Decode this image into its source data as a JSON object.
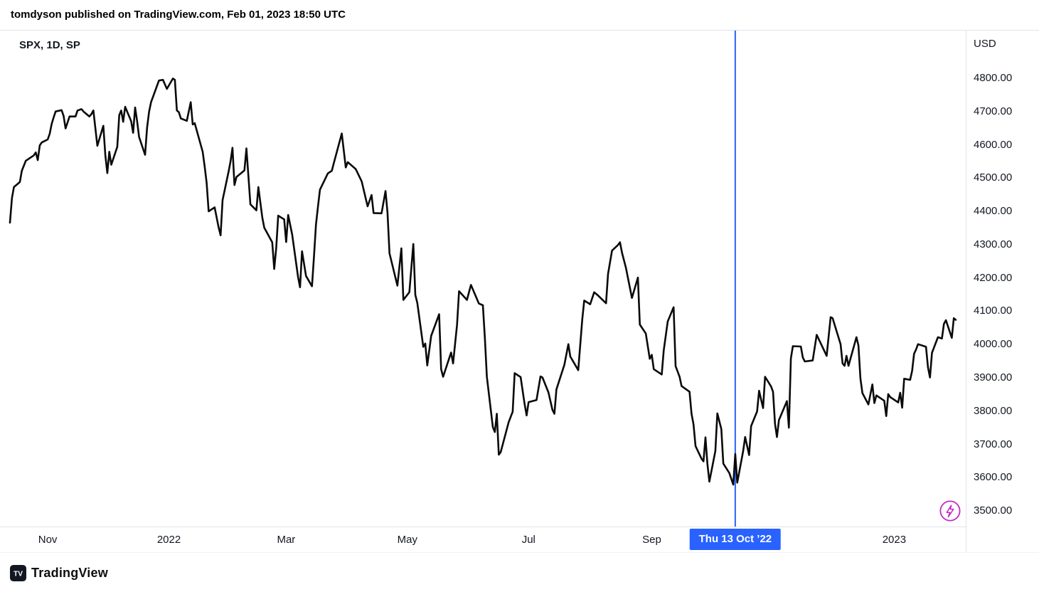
{
  "header": {
    "attribution": "tomdyson published on TradingView.com, Feb 01, 2023 18:50 UTC"
  },
  "chart": {
    "legend": "SPX, 1D, SP",
    "currency_label": "USD"
  },
  "footer": {
    "brand": "TradingView"
  },
  "colors": {
    "line": "#0a0a0a",
    "crosshair": "#2962ff",
    "text": "#131722",
    "axis_border": "#e0e3eb",
    "flash_icon": "#c22ac5"
  },
  "chart_data": {
    "type": "line",
    "title": "SPX, 1D, SP",
    "symbol": "SPX",
    "interval": "1D",
    "exchange": "SP",
    "currency": "USD",
    "xlabel": "",
    "ylabel": "",
    "grid": false,
    "ylim": [
      3449,
      4941
    ],
    "time_range": [
      "2021-10-08",
      "2023-02-06"
    ],
    "y_ticks": [
      4800,
      4700,
      4600,
      4500,
      4400,
      4300,
      4200,
      4100,
      4000,
      3900,
      3800,
      3700,
      3600,
      3500
    ],
    "x_ticks": [
      {
        "label": "Nov",
        "date": "2021-11-01"
      },
      {
        "label": "2022",
        "date": "2022-01-01"
      },
      {
        "label": "Mar",
        "date": "2022-03-01"
      },
      {
        "label": "May",
        "date": "2022-05-01"
      },
      {
        "label": "Jul",
        "date": "2022-07-01"
      },
      {
        "label": "Sep",
        "date": "2022-09-01"
      },
      {
        "label": "2023",
        "date": "2023-01-01"
      }
    ],
    "crosshair": {
      "date": "2022-10-13",
      "label": "Thu 13 Oct ’22"
    },
    "dates": [
      "2021-10-13",
      "2021-10-14",
      "2021-10-15",
      "2021-10-18",
      "2021-10-19",
      "2021-10-21",
      "2021-10-25",
      "2021-10-26",
      "2021-10-27",
      "2021-10-28",
      "2021-10-29",
      "2021-11-01",
      "2021-11-02",
      "2021-11-03",
      "2021-11-04",
      "2021-11-05",
      "2021-11-08",
      "2021-11-09",
      "2021-11-10",
      "2021-11-12",
      "2021-11-15",
      "2021-11-16",
      "2021-11-18",
      "2021-11-19",
      "2021-11-22",
      "2021-11-23",
      "2021-11-24",
      "2021-11-26",
      "2021-11-29",
      "2021-11-30",
      "2021-12-01",
      "2021-12-02",
      "2021-12-03",
      "2021-12-06",
      "2021-12-07",
      "2021-12-08",
      "2021-12-09",
      "2021-12-10",
      "2021-12-13",
      "2021-12-14",
      "2021-12-15",
      "2021-12-16",
      "2021-12-17",
      "2021-12-20",
      "2021-12-21",
      "2021-12-22",
      "2021-12-23",
      "2021-12-27",
      "2021-12-29",
      "2021-12-31",
      "2022-01-03",
      "2022-01-04",
      "2022-01-05",
      "2022-01-06",
      "2022-01-07",
      "2022-01-10",
      "2022-01-12",
      "2022-01-13",
      "2022-01-14",
      "2022-01-18",
      "2022-01-19",
      "2022-01-20",
      "2022-01-21",
      "2022-01-24",
      "2022-01-26",
      "2022-01-27",
      "2022-01-28",
      "2022-01-31",
      "2022-02-01",
      "2022-02-02",
      "2022-02-03",
      "2022-02-04",
      "2022-02-08",
      "2022-02-09",
      "2022-02-10",
      "2022-02-11",
      "2022-02-14",
      "2022-02-15",
      "2022-02-17",
      "2022-02-18",
      "2022-02-22",
      "2022-02-23",
      "2022-02-24",
      "2022-02-25",
      "2022-02-28",
      "2022-03-01",
      "2022-03-02",
      "2022-03-04",
      "2022-03-07",
      "2022-03-08",
      "2022-03-09",
      "2022-03-11",
      "2022-03-14",
      "2022-03-15",
      "2022-03-16",
      "2022-03-17",
      "2022-03-18",
      "2022-03-22",
      "2022-03-24",
      "2022-03-25",
      "2022-03-29",
      "2022-03-31",
      "2022-04-01",
      "2022-04-05",
      "2022-04-08",
      "2022-04-11",
      "2022-04-13",
      "2022-04-14",
      "2022-04-18",
      "2022-04-20",
      "2022-04-21",
      "2022-04-22",
      "2022-04-26",
      "2022-04-28",
      "2022-04-29",
      "2022-05-02",
      "2022-05-04",
      "2022-05-05",
      "2022-05-06",
      "2022-05-09",
      "2022-05-10",
      "2022-05-11",
      "2022-05-13",
      "2022-05-17",
      "2022-05-18",
      "2022-05-19",
      "2022-05-23",
      "2022-05-24",
      "2022-05-26",
      "2022-05-27",
      "2022-05-31",
      "2022-06-02",
      "2022-06-06",
      "2022-06-08",
      "2022-06-09",
      "2022-06-10",
      "2022-06-13",
      "2022-06-14",
      "2022-06-15",
      "2022-06-16",
      "2022-06-17",
      "2022-06-21",
      "2022-06-23",
      "2022-06-24",
      "2022-06-27",
      "2022-06-29",
      "2022-06-30",
      "2022-07-01",
      "2022-07-05",
      "2022-07-07",
      "2022-07-08",
      "2022-07-11",
      "2022-07-13",
      "2022-07-14",
      "2022-07-15",
      "2022-07-19",
      "2022-07-21",
      "2022-07-22",
      "2022-07-26",
      "2022-07-28",
      "2022-07-29",
      "2022-08-01",
      "2022-08-03",
      "2022-08-05",
      "2022-08-09",
      "2022-08-10",
      "2022-08-12",
      "2022-08-15",
      "2022-08-16",
      "2022-08-17",
      "2022-08-19",
      "2022-08-22",
      "2022-08-25",
      "2022-08-26",
      "2022-08-29",
      "2022-08-31",
      "2022-09-01",
      "2022-09-02",
      "2022-09-06",
      "2022-09-07",
      "2022-09-09",
      "2022-09-12",
      "2022-09-13",
      "2022-09-15",
      "2022-09-16",
      "2022-09-20",
      "2022-09-21",
      "2022-09-22",
      "2022-09-23",
      "2022-09-26",
      "2022-09-27",
      "2022-09-28",
      "2022-09-29",
      "2022-09-30",
      "2022-10-03",
      "2022-10-04",
      "2022-10-06",
      "2022-10-07",
      "2022-10-10",
      "2022-10-12",
      "2022-10-13",
      "2022-10-14",
      "2022-10-17",
      "2022-10-18",
      "2022-10-20",
      "2022-10-21",
      "2022-10-24",
      "2022-10-25",
      "2022-10-27",
      "2022-10-28",
      "2022-10-31",
      "2022-11-01",
      "2022-11-02",
      "2022-11-03",
      "2022-11-04",
      "2022-11-08",
      "2022-11-09",
      "2022-11-10",
      "2022-11-11",
      "2022-11-15",
      "2022-11-16",
      "2022-11-17",
      "2022-11-21",
      "2022-11-23",
      "2022-11-28",
      "2022-11-30",
      "2022-12-01",
      "2022-12-05",
      "2022-12-06",
      "2022-12-07",
      "2022-12-08",
      "2022-12-09",
      "2022-12-13",
      "2022-12-14",
      "2022-12-15",
      "2022-12-16",
      "2022-12-19",
      "2022-12-21",
      "2022-12-22",
      "2022-12-23",
      "2022-12-27",
      "2022-12-28",
      "2022-12-29",
      "2022-12-30",
      "2023-01-03",
      "2023-01-04",
      "2023-01-05",
      "2023-01-06",
      "2023-01-09",
      "2023-01-10",
      "2023-01-11",
      "2023-01-12",
      "2023-01-13",
      "2023-01-17",
      "2023-01-18",
      "2023-01-19",
      "2023-01-20",
      "2023-01-23",
      "2023-01-25",
      "2023-01-26",
      "2023-01-27",
      "2023-01-30",
      "2023-01-31",
      "2023-02-01"
    ],
    "values": [
      4364,
      4438,
      4471,
      4486,
      4520,
      4550,
      4566,
      4575,
      4552,
      4596,
      4605,
      4614,
      4631,
      4661,
      4680,
      4698,
      4702,
      4685,
      4647,
      4683,
      4683,
      4701,
      4705,
      4698,
      4683,
      4690,
      4701,
      4595,
      4655,
      4567,
      4513,
      4577,
      4538,
      4592,
      4687,
      4701,
      4667,
      4712,
      4669,
      4634,
      4710,
      4669,
      4621,
      4568,
      4649,
      4697,
      4726,
      4791,
      4793,
      4766,
      4797,
      4793,
      4701,
      4696,
      4677,
      4670,
      4726,
      4659,
      4663,
      4577,
      4533,
      4483,
      4398,
      4410,
      4350,
      4326,
      4432,
      4516,
      4547,
      4589,
      4477,
      4501,
      4521,
      4587,
      4504,
      4419,
      4401,
      4471,
      4380,
      4349,
      4305,
      4225,
      4288,
      4385,
      4374,
      4306,
      4387,
      4329,
      4201,
      4170,
      4278,
      4204,
      4173,
      4262,
      4358,
      4412,
      4463,
      4512,
      4520,
      4543,
      4632,
      4530,
      4546,
      4525,
      4488,
      4413,
      4447,
      4393,
      4392,
      4459,
      4394,
      4272,
      4175,
      4287,
      4132,
      4155,
      4300,
      4147,
      4123,
      3991,
      4001,
      3935,
      4024,
      4089,
      3924,
      3901,
      3974,
      3941,
      4058,
      4158,
      4132,
      4177,
      4121,
      4116,
      4018,
      3901,
      3750,
      3735,
      3790,
      3667,
      3675,
      3765,
      3796,
      3912,
      3900,
      3819,
      3785,
      3825,
      3831,
      3902,
      3899,
      3854,
      3802,
      3790,
      3863,
      3937,
      3999,
      3962,
      3921,
      4072,
      4130,
      4119,
      4155,
      4145,
      4122,
      4210,
      4280,
      4297,
      4305,
      4274,
      4228,
      4138,
      4199,
      4058,
      4031,
      3955,
      3967,
      3924,
      3908,
      3980,
      4067,
      4110,
      3933,
      3901,
      3873,
      3856,
      3790,
      3758,
      3693,
      3655,
      3647,
      3719,
      3640,
      3586,
      3678,
      3791,
      3744,
      3640,
      3612,
      3577,
      3669,
      3583,
      3678,
      3720,
      3666,
      3753,
      3797,
      3859,
      3807,
      3901,
      3872,
      3856,
      3760,
      3720,
      3771,
      3828,
      3748,
      3956,
      3993,
      3992,
      3959,
      3947,
      3950,
      4027,
      3964,
      4080,
      4077,
      3999,
      3941,
      3934,
      3964,
      3934,
      4020,
      3995,
      3896,
      3852,
      3818,
      3878,
      3822,
      3845,
      3829,
      3783,
      3849,
      3840,
      3824,
      3853,
      3808,
      3895,
      3892,
      3919,
      3970,
      3983,
      3999,
      3991,
      3929,
      3899,
      3973,
      4020,
      4016,
      4060,
      4071,
      4018,
      4077,
      4072
    ]
  }
}
